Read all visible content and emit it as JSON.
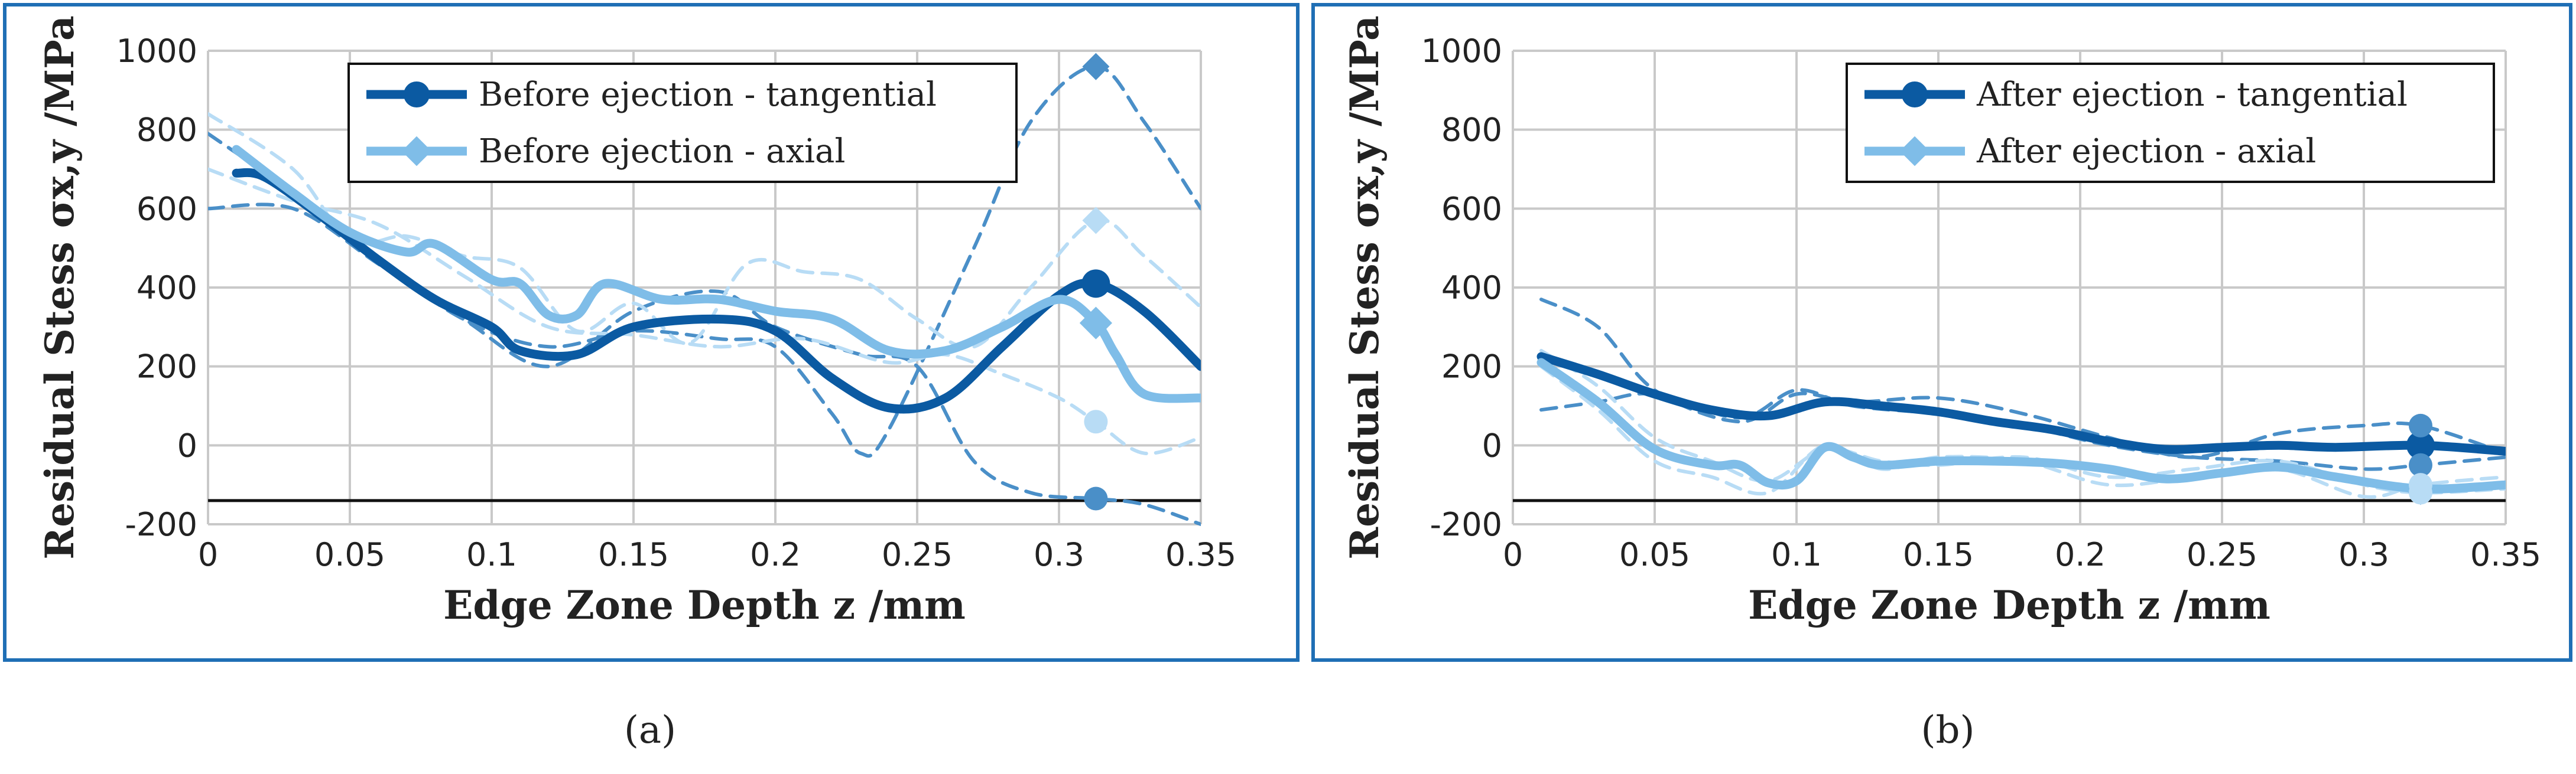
{
  "colors": {
    "dark": "#0b5aa2",
    "mid": "#4a8fc8",
    "light": "#7fbde8",
    "pale": "#b8dcf5",
    "frame": "#1f6fb5"
  },
  "chart_data": [
    {
      "type": "line",
      "panel_label": "a",
      "xlabel": "Edge Zone Depth z /mm",
      "ylabel": "Residual Stess σx,y  /MPa",
      "xlim": [
        0,
        0.35
      ],
      "ylim": [
        -200,
        1000
      ],
      "x_ticks": [
        "0",
        "0.05",
        "0.1",
        "0.15",
        "0.2",
        "0.25",
        "0.3",
        "0.35"
      ],
      "y_ticks": [
        "-200",
        "0",
        "200",
        "400",
        "600",
        "800",
        "1000"
      ],
      "grid": true,
      "legend_position": "top-right",
      "reference_line": -140,
      "series": [
        {
          "name": "Before ejection - tangential",
          "marker": "circle",
          "style": "main",
          "color": "dark",
          "x": [
            0.01,
            0.02,
            0.04,
            0.06,
            0.08,
            0.1,
            0.11,
            0.13,
            0.15,
            0.18,
            0.2,
            0.22,
            0.24,
            0.26,
            0.28,
            0.3,
            0.313,
            0.33,
            0.35
          ],
          "y": [
            690,
            680,
            580,
            470,
            370,
            300,
            240,
            230,
            300,
            320,
            290,
            170,
            95,
            120,
            250,
            380,
            410,
            340,
            200
          ]
        },
        {
          "name": "Before ejection - axial",
          "marker": "diamond",
          "style": "main",
          "color": "light",
          "x": [
            0.01,
            0.03,
            0.05,
            0.07,
            0.08,
            0.1,
            0.11,
            0.12,
            0.13,
            0.14,
            0.16,
            0.18,
            0.2,
            0.22,
            0.24,
            0.26,
            0.28,
            0.3,
            0.313,
            0.32,
            0.33,
            0.35
          ],
          "y": [
            750,
            640,
            540,
            490,
            510,
            420,
            410,
            330,
            330,
            410,
            370,
            370,
            340,
            320,
            240,
            240,
            300,
            370,
            310,
            230,
            130,
            120
          ]
        },
        {
          "name": "",
          "style": "dashed",
          "color": "mid",
          "x": [
            0.0,
            0.03,
            0.06,
            0.09,
            0.12,
            0.15,
            0.18,
            0.2,
            0.22,
            0.23,
            0.24,
            0.27,
            0.29,
            0.313,
            0.33,
            0.35
          ],
          "y": [
            790,
            640,
            470,
            320,
            250,
            290,
            270,
            250,
            80,
            -20,
            40,
            500,
            820,
            960,
            820,
            600
          ]
        },
        {
          "name": "",
          "style": "dashed",
          "color": "mid",
          "x": [
            0.0,
            0.03,
            0.06,
            0.09,
            0.12,
            0.15,
            0.18,
            0.2,
            0.23,
            0.25,
            0.27,
            0.29,
            0.313,
            0.33,
            0.35
          ],
          "y": [
            600,
            600,
            460,
            320,
            200,
            340,
            390,
            300,
            230,
            200,
            -40,
            -120,
            -135,
            -150,
            -200
          ]
        },
        {
          "name": "",
          "style": "dashed",
          "color": "pale",
          "x": [
            0.0,
            0.03,
            0.05,
            0.07,
            0.09,
            0.11,
            0.13,
            0.15,
            0.17,
            0.19,
            0.21,
            0.23,
            0.25,
            0.27,
            0.29,
            0.313,
            0.33,
            0.35
          ],
          "y": [
            840,
            700,
            520,
            530,
            480,
            450,
            290,
            360,
            260,
            460,
            440,
            420,
            320,
            250,
            400,
            570,
            480,
            350
          ]
        },
        {
          "name": "",
          "style": "dashed",
          "color": "pale",
          "x": [
            0.0,
            0.03,
            0.06,
            0.09,
            0.12,
            0.15,
            0.18,
            0.21,
            0.24,
            0.26,
            0.28,
            0.3,
            0.313,
            0.33,
            0.35
          ],
          "y": [
            700,
            620,
            560,
            430,
            300,
            280,
            250,
            270,
            210,
            230,
            180,
            120,
            60,
            -20,
            20
          ]
        }
      ]
    },
    {
      "type": "line",
      "panel_label": "b",
      "xlabel": "Edge Zone Depth z /mm",
      "ylabel": "Residual Stess σx,y  /MPa",
      "xlim": [
        0,
        0.35
      ],
      "ylim": [
        -200,
        1000
      ],
      "x_ticks": [
        "0",
        "0.05",
        "0.1",
        "0.15",
        "0.2",
        "0.25",
        "0.3",
        "0.35"
      ],
      "y_ticks": [
        "-200",
        "0",
        "200",
        "400",
        "600",
        "800",
        "1000"
      ],
      "grid": true,
      "legend_position": "top-right",
      "reference_line": -140,
      "series": [
        {
          "name": "After ejection - tangential",
          "marker": "circle",
          "style": "main",
          "color": "dark",
          "x": [
            0.01,
            0.03,
            0.05,
            0.07,
            0.09,
            0.11,
            0.13,
            0.15,
            0.17,
            0.19,
            0.21,
            0.23,
            0.25,
            0.27,
            0.29,
            0.32,
            0.35
          ],
          "y": [
            225,
            180,
            130,
            90,
            75,
            110,
            100,
            85,
            60,
            40,
            10,
            -10,
            -5,
            0,
            -5,
            0,
            -15
          ]
        },
        {
          "name": "After ejection - axial",
          "marker": "diamond",
          "style": "main",
          "color": "light",
          "x": [
            0.01,
            0.03,
            0.05,
            0.07,
            0.08,
            0.09,
            0.1,
            0.11,
            0.12,
            0.13,
            0.15,
            0.17,
            0.19,
            0.21,
            0.23,
            0.25,
            0.27,
            0.29,
            0.32,
            0.35
          ],
          "y": [
            210,
            110,
            -10,
            -50,
            -50,
            -95,
            -90,
            -5,
            -30,
            -50,
            -40,
            -40,
            -45,
            -60,
            -85,
            -70,
            -55,
            -80,
            -110,
            -100
          ]
        },
        {
          "name": "",
          "style": "dashed",
          "color": "mid",
          "x": [
            0.01,
            0.03,
            0.05,
            0.08,
            0.1,
            0.12,
            0.15,
            0.18,
            0.21,
            0.24,
            0.27,
            0.3,
            0.32,
            0.35
          ],
          "y": [
            370,
            300,
            140,
            60,
            130,
            110,
            120,
            80,
            20,
            -30,
            30,
            50,
            50,
            -20
          ]
        },
        {
          "name": "",
          "style": "dashed",
          "color": "mid",
          "x": [
            0.01,
            0.03,
            0.05,
            0.08,
            0.1,
            0.12,
            0.15,
            0.18,
            0.21,
            0.24,
            0.27,
            0.3,
            0.32,
            0.35
          ],
          "y": [
            90,
            110,
            130,
            70,
            140,
            100,
            80,
            50,
            0,
            -30,
            -40,
            -60,
            -50,
            -30
          ]
        },
        {
          "name": "",
          "style": "dashed",
          "color": "pale",
          "x": [
            0.01,
            0.03,
            0.05,
            0.07,
            0.09,
            0.11,
            0.13,
            0.15,
            0.18,
            0.21,
            0.24,
            0.27,
            0.3,
            0.32,
            0.35
          ],
          "y": [
            200,
            90,
            -40,
            -80,
            -120,
            0,
            -60,
            -30,
            -40,
            -100,
            -80,
            -60,
            -130,
            -100,
            -80
          ]
        },
        {
          "name": "",
          "style": "dashed",
          "color": "pale",
          "x": [
            0.01,
            0.03,
            0.05,
            0.07,
            0.09,
            0.11,
            0.13,
            0.15,
            0.18,
            0.21,
            0.24,
            0.27,
            0.3,
            0.32,
            0.35
          ],
          "y": [
            240,
            150,
            20,
            -40,
            -90,
            -10,
            -40,
            -50,
            -30,
            -80,
            -60,
            -40,
            -100,
            -120,
            -110
          ]
        }
      ]
    }
  ]
}
